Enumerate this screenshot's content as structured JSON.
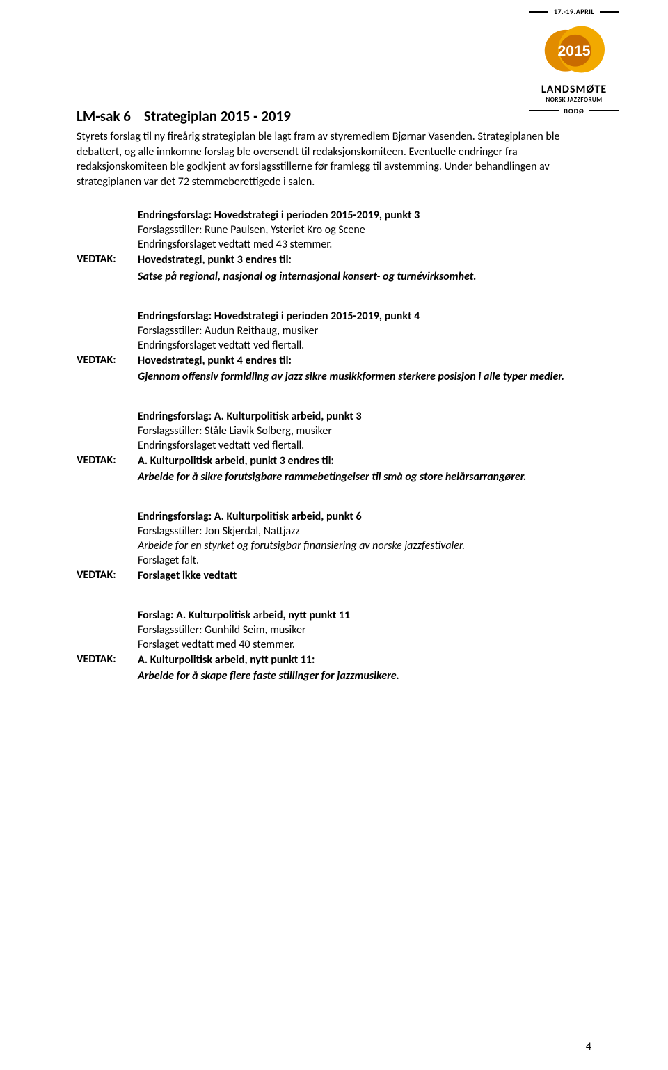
{
  "logo": {
    "dates": "17.-19.APRIL",
    "year": "2015",
    "word": "LANDSMØTE",
    "sub": "NORSK JAZZFORUM",
    "city": "BODØ",
    "colors": {
      "badge_outer": "#e28c00",
      "badge_mid": "#f2a900",
      "badge_inner": "#c96b00",
      "year_text": "#ffffff"
    }
  },
  "page": {
    "title_prefix": "LM-sak 6",
    "title_rest": "Strategiplan 2015 - 2019",
    "intro": "Styrets forslag til ny fireårig strategiplan ble lagt fram av styremedlem Bjørnar Vasenden. Strategiplanen ble debattert, og alle innkomne forslag ble oversendt til redaksjonskomiteen. Eventuelle endringer fra redaksjonskomiteen ble godkjent av forslagsstillerne før framlegg til avstemming. Under behandlingen av strategiplanen var det 72 stemmeberettigede i salen.",
    "page_number": "4"
  },
  "blocks": [
    {
      "pre": [
        {
          "text": "Endringsforslag: Hovedstrategi i perioden 2015-2019, punkt 3",
          "style": "bold"
        },
        {
          "text": "Forslagsstiller: Rune Paulsen, Ysteriet Kro og Scene",
          "style": ""
        },
        {
          "text": "Endringsforslaget vedtatt med 43 stemmer.",
          "style": ""
        }
      ],
      "vedtak_label": "VEDTAK:",
      "decision": [
        {
          "text": "Hovedstrategi, punkt 3 endres til:",
          "style": "bold"
        },
        {
          "text": "Satse på regional, nasjonal og internasjonal konsert- og turnévirksomhet.",
          "style": "bolditalic"
        }
      ]
    },
    {
      "pre": [
        {
          "text": "Endringsforslag: Hovedstrategi i perioden 2015-2019, punkt 4",
          "style": "bold"
        },
        {
          "text": "Forslagsstiller: Audun Reithaug, musiker",
          "style": ""
        },
        {
          "text": "Endringsforslaget vedtatt ved flertall.",
          "style": ""
        }
      ],
      "vedtak_label": "VEDTAK:",
      "decision": [
        {
          "text": "Hovedstrategi, punkt 4 endres til:",
          "style": "bold"
        },
        {
          "text": "Gjennom offensiv formidling av jazz sikre musikkformen sterkere posisjon i alle typer medier.",
          "style": "bolditalic"
        }
      ]
    },
    {
      "pre": [
        {
          "text": "Endringsforslag: A. Kulturpolitisk arbeid, punkt 3",
          "style": "bold"
        },
        {
          "text": "Forslagsstiller: Ståle Liavik Solberg, musiker",
          "style": ""
        },
        {
          "text": "Endringsforslaget vedtatt ved flertall.",
          "style": ""
        }
      ],
      "vedtak_label": "VEDTAK:",
      "decision": [
        {
          "text": "A. Kulturpolitisk arbeid, punkt 3 endres til:",
          "style": "bold"
        },
        {
          "text": "Arbeide for å sikre forutsigbare rammebetingelser til små og store helårsarrangører.",
          "style": "bolditalic"
        }
      ]
    },
    {
      "pre": [
        {
          "text": "Endringsforslag: A. Kulturpolitisk arbeid, punkt 6",
          "style": "bold"
        },
        {
          "text": "Forslagsstiller: Jon Skjerdal, Nattjazz",
          "style": ""
        },
        {
          "text": "Arbeide for en styrket og forutsigbar finansiering av norske jazzfestivaler.",
          "style": "italic"
        },
        {
          "text": "Forslaget falt.",
          "style": ""
        }
      ],
      "vedtak_label": "VEDTAK:",
      "decision": [
        {
          "text": "Forslaget ikke vedtatt",
          "style": "bold"
        }
      ]
    },
    {
      "pre": [
        {
          "text": "Forslag: A. Kulturpolitisk arbeid, nytt punkt 11",
          "style": "bold"
        },
        {
          "text": "Forslagsstiller: Gunhild Seim, musiker",
          "style": ""
        },
        {
          "text": "Forslaget vedtatt med 40 stemmer.",
          "style": ""
        }
      ],
      "vedtak_label": "VEDTAK:",
      "decision": [
        {
          "text": "A. Kulturpolitisk arbeid, nytt punkt 11:",
          "style": "bold"
        },
        {
          "text": "Arbeide for å skape flere faste stillinger for jazzmusikere.",
          "style": "bolditalic"
        }
      ]
    }
  ]
}
